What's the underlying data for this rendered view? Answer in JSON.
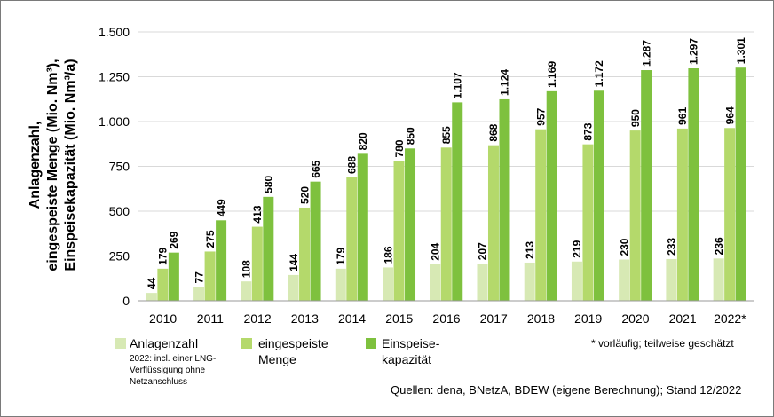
{
  "chart_data": {
    "type": "bar",
    "categories": [
      "2010",
      "2011",
      "2012",
      "2013",
      "2014",
      "2015",
      "2016",
      "2017",
      "2018",
      "2019",
      "2020",
      "2021",
      "2022*"
    ],
    "series": [
      {
        "name": "Anlagenzahl",
        "color": "#d7e9b4",
        "values": [
          44,
          77,
          108,
          144,
          179,
          186,
          204,
          207,
          213,
          219,
          230,
          233,
          236
        ],
        "labels": [
          "44",
          "77",
          "108",
          "144",
          "179",
          "186",
          "204",
          "207",
          "213",
          "219",
          "230",
          "233",
          "236"
        ]
      },
      {
        "name": "eingespeiste Menge",
        "color": "#b4d96b",
        "values": [
          179,
          275,
          413,
          520,
          688,
          780,
          855,
          868,
          957,
          873,
          950,
          961,
          964
        ],
        "labels": [
          "179",
          "275",
          "413",
          "520",
          "688",
          "780",
          "855",
          "868",
          "957",
          "873",
          "950",
          "961",
          "964"
        ]
      },
      {
        "name": "Einspeisekapazität",
        "color": "#7ec13e",
        "values": [
          269,
          449,
          580,
          665,
          820,
          850,
          1107,
          1124,
          1169,
          1172,
          1287,
          1297,
          1301
        ],
        "labels": [
          "269",
          "449",
          "580",
          "665",
          "820",
          "850",
          "1.107",
          "1.124",
          "1.169",
          "1.172",
          "1.287",
          "1.297",
          "1.301"
        ]
      }
    ],
    "ylim": [
      0,
      1500
    ],
    "yticks": [
      0,
      250,
      500,
      750,
      1000,
      1250,
      1500
    ],
    "ytick_labels": [
      "0",
      "250",
      "500",
      "750",
      "1.000",
      "1.250",
      "1.500"
    ],
    "ylabel_lines": [
      "Anlagenzahl,",
      "eingespeiste Menge (Mio. Nm³),",
      "Einspeisekapazität (Mio. Nm³/a)"
    ],
    "grid": true
  },
  "legend": {
    "item1_label": "Anlagenzahl",
    "item1_note_lines": [
      "2022: incl. einer LNG-",
      "Verflüssigung ohne",
      "Netzanschluss"
    ],
    "item2_label_lines": [
      "eingespeiste",
      "Menge"
    ],
    "item3_label_lines": [
      "Einspeise-",
      "kapazität"
    ]
  },
  "notes": {
    "preliminary": "* vorläufig; teilweise geschätzt",
    "sources": "Quellen: dena, BNetzA, BDEW (eigene Berechnung); Stand 12/2022"
  }
}
